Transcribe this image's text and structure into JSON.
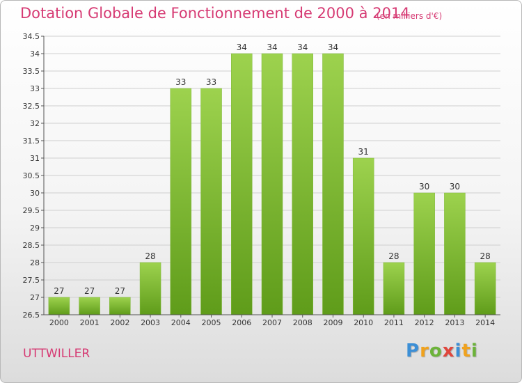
{
  "header": {
    "title": "Dotation Globale de Fonctionnement de 2000 à 2014",
    "unit": "(en milliers d'€)"
  },
  "footer": {
    "commune": "UTTWILLER",
    "logo_letters": [
      "P",
      "r",
      "o",
      "x",
      "i",
      "t",
      "i"
    ]
  },
  "colors": {
    "title": "#d63a73",
    "bar_top": "#9dd24e",
    "bar_bottom": "#5f9c1a",
    "grid": "#cfcfcf"
  },
  "chart_data": {
    "type": "bar",
    "title": "Dotation Globale de Fonctionnement de 2000 à 2014",
    "xlabel": "",
    "ylabel": "",
    "categories": [
      "2000",
      "2001",
      "2002",
      "2003",
      "2004",
      "2005",
      "2006",
      "2007",
      "2008",
      "2009",
      "2010",
      "2011",
      "2012",
      "2013",
      "2014"
    ],
    "values": [
      27,
      27,
      27,
      28,
      33,
      33,
      34,
      34,
      34,
      34,
      31,
      28,
      30,
      30,
      28
    ],
    "ylim": [
      26.5,
      34.5
    ],
    "yticks": [
      "26.5",
      "27",
      "27.5",
      "28",
      "28.5",
      "29",
      "29.5",
      "30",
      "30.5",
      "31",
      "31.5",
      "32",
      "32.5",
      "33",
      "33.5",
      "34",
      "34.5"
    ],
    "grid": true,
    "legend": "none"
  }
}
